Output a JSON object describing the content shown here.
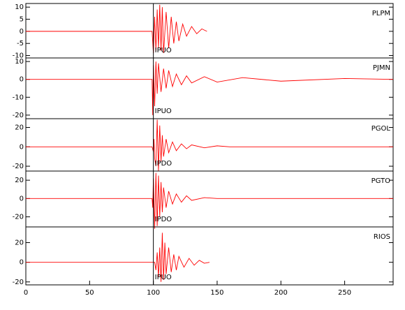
{
  "chart_data": [
    {
      "type": "line",
      "title": "PLPM",
      "annotation": "IPUO",
      "pick_x": 100,
      "xlim": [
        0,
        288
      ],
      "ylim": [
        -11,
        11.5
      ],
      "yticks": [
        10,
        5,
        0,
        -5,
        -10
      ],
      "x": [
        0,
        99,
        100,
        101,
        102,
        103,
        104,
        105,
        106,
        107,
        108,
        110,
        112,
        114,
        116,
        118,
        120,
        123,
        126,
        130,
        134,
        138,
        142
      ],
      "series": [
        {
          "color": "#ff0000",
          "values": [
            0,
            0,
            -9,
            6,
            -8,
            9,
            -7,
            11,
            -8,
            10,
            -9,
            8,
            -7,
            6,
            -5,
            4,
            -4,
            3,
            -2,
            2,
            -1,
            1,
            0
          ]
        }
      ]
    },
    {
      "type": "line",
      "title": "PJMN",
      "annotation": "IPUO",
      "pick_x": 100,
      "xlim": [
        0,
        288
      ],
      "ylim": [
        -22,
        12
      ],
      "yticks": [
        10,
        0,
        -10,
        -20
      ],
      "x": [
        0,
        99,
        99.5,
        100,
        101,
        102,
        103,
        104,
        106,
        108,
        110,
        112,
        115,
        118,
        122,
        126,
        130,
        140,
        150,
        170,
        200,
        250,
        288
      ],
      "series": [
        {
          "color": "#ff0000",
          "values": [
            0,
            0,
            -20,
            8,
            -15,
            10,
            -8,
            9,
            -7,
            6,
            -5,
            5,
            -4,
            3,
            -3,
            2,
            -2,
            1.5,
            -1.5,
            1,
            -1,
            0.5,
            0
          ]
        }
      ]
    },
    {
      "type": "line",
      "title": "PGOL",
      "annotation": "IPDO",
      "pick_x": 100,
      "xlim": [
        0,
        288
      ],
      "ylim": [
        -25,
        29
      ],
      "yticks": [
        20,
        0,
        -20
      ],
      "x": [
        0,
        99,
        100,
        100.5,
        101,
        102,
        103,
        104,
        105,
        106,
        107,
        108,
        110,
        112,
        115,
        118,
        122,
        126,
        130,
        140,
        150,
        160,
        288
      ],
      "series": [
        {
          "color": "#ff0000",
          "values": [
            0,
            0,
            -5,
            8,
            -12,
            -20,
            28,
            -25,
            22,
            -15,
            12,
            -10,
            8,
            -6,
            5,
            -4,
            3,
            -2,
            2,
            -1,
            1,
            0,
            0
          ]
        }
      ]
    },
    {
      "type": "line",
      "title": "PGTO",
      "annotation": "IPDO",
      "pick_x": 100,
      "xlim": [
        0,
        288
      ],
      "ylim": [
        -31,
        30
      ],
      "yticks": [
        20,
        0,
        -20
      ],
      "x": [
        0,
        99,
        99.5,
        100,
        101,
        102,
        103,
        104,
        105,
        106,
        107,
        108,
        110,
        112,
        115,
        118,
        122,
        126,
        130,
        140,
        150,
        288
      ],
      "series": [
        {
          "color": "#ff0000",
          "values": [
            0,
            0,
            -10,
            22,
            -33,
            28,
            -30,
            25,
            -20,
            18,
            -15,
            12,
            -10,
            8,
            -6,
            5,
            -4,
            3,
            -2,
            1,
            0,
            0
          ]
        }
      ]
    },
    {
      "type": "line",
      "title": "RIOS",
      "annotation": "IPUO",
      "pick_x": 100,
      "xlim": [
        0,
        288
      ],
      "ylim": [
        -23,
        36
      ],
      "yticks": [
        20,
        0,
        -20
      ],
      "xticks": [
        0,
        50,
        100,
        150,
        200,
        250
      ],
      "x": [
        0,
        101,
        102,
        103,
        104,
        105,
        106,
        107,
        108,
        109,
        110,
        112,
        114,
        116,
        118,
        120,
        124,
        128,
        132,
        136,
        140,
        144
      ],
      "series": [
        {
          "color": "#ff0000",
          "values": [
            0,
            0,
            -8,
            10,
            -15,
            15,
            -20,
            30,
            -18,
            20,
            -12,
            15,
            -10,
            8,
            -8,
            6,
            -5,
            4,
            -3,
            2,
            -1,
            0
          ]
        }
      ]
    }
  ]
}
